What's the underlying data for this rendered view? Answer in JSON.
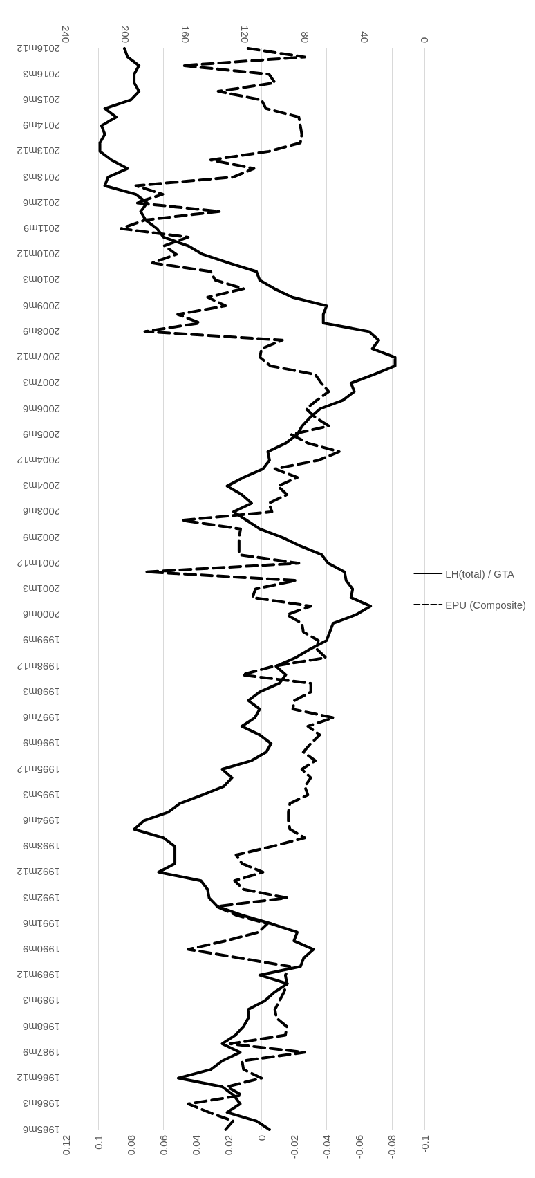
{
  "chart_data": {
    "type": "line",
    "orientation": "horizontal",
    "marker": "none",
    "grid": "x",
    "legend": "right",
    "categories": [
      "2016m12",
      null,
      null,
      "2016m3",
      null,
      null,
      "2015m6",
      null,
      null,
      "2014m9",
      null,
      null,
      "2013m12",
      null,
      null,
      "2013m3",
      null,
      null,
      "2012m6",
      null,
      null,
      "2011m9",
      null,
      null,
      "2010m12",
      null,
      null,
      "2010m3",
      null,
      null,
      "2009m6",
      null,
      null,
      "2008m9",
      null,
      null,
      "2007m12",
      null,
      null,
      "2007m3",
      null,
      null,
      "2006m6",
      null,
      null,
      "2005m9",
      null,
      null,
      "2004m12",
      null,
      null,
      "2004m3",
      null,
      null,
      "2003m6",
      null,
      null,
      "2002m9",
      null,
      null,
      "2001m12",
      null,
      null,
      "2001m3",
      null,
      null,
      "2000m6",
      null,
      null,
      "1999m9",
      null,
      null,
      "1998m12",
      null,
      null,
      "1998m3",
      null,
      null,
      "1997m6",
      null,
      null,
      "1996m9",
      null,
      null,
      "1995m12",
      null,
      null,
      "1995m3",
      null,
      null,
      "1994m6",
      null,
      null,
      "1993m9",
      null,
      null,
      "1992m12",
      null,
      null,
      "1992m3",
      null,
      null,
      "1991m6",
      null,
      null,
      "1990m9",
      null,
      null,
      "1989m12",
      null,
      null,
      "1989m3",
      null,
      null,
      "1988m6",
      null,
      null,
      "1987m9",
      null,
      null,
      "1986m12",
      null,
      null,
      "1986m3",
      null,
      null,
      "1985m6"
    ],
    "xlim": [
      0.12,
      -0.1
    ],
    "xticks": [
      0.12,
      0.1,
      0.08,
      0.06,
      0.04,
      0.02,
      0,
      -0.02,
      -0.04,
      -0.06,
      -0.08,
      -0.1
    ],
    "x2lim": [
      240,
      0
    ],
    "x2ticks": [
      240,
      200,
      160,
      120,
      80,
      40,
      0
    ],
    "series": [
      {
        "name": "LH(total) / GTA",
        "color": "#000000",
        "line_style": "solid",
        "values": [
          0.084,
          0.082,
          0.075,
          0.078,
          0.078,
          0.075,
          0.08,
          0.096,
          0.089,
          0.098,
          0.096,
          0.099,
          0.099,
          0.092,
          0.082,
          0.094,
          0.096,
          0.077,
          0.07,
          0.074,
          0.071,
          0.064,
          0.06,
          0.045,
          0.036,
          0.02,
          0.003,
          0.001,
          -0.008,
          -0.019,
          -0.04,
          -0.038,
          -0.038,
          -0.066,
          -0.072,
          -0.068,
          -0.082,
          -0.082,
          -0.069,
          -0.055,
          -0.057,
          -0.05,
          -0.036,
          -0.03,
          -0.025,
          -0.022,
          -0.015,
          -0.004,
          -0.005,
          -0.001,
          0.011,
          0.021,
          0.012,
          0.006,
          0.017,
          0.009,
          0.001,
          -0.013,
          -0.024,
          -0.037,
          -0.041,
          -0.051,
          -0.052,
          -0.056,
          -0.055,
          -0.067,
          -0.058,
          -0.044,
          -0.042,
          -0.04,
          -0.03,
          -0.021,
          -0.009,
          -0.015,
          -0.011,
          0.001,
          0.008,
          0.001,
          0.004,
          0.012,
          0.001,
          -0.006,
          -0.003,
          0.006,
          0.024,
          0.018,
          0.023,
          0.036,
          0.05,
          0.057,
          0.072,
          0.078,
          0.06,
          0.053,
          0.053,
          0.053,
          0.063,
          0.037,
          0.033,
          0.032,
          0.027,
          0.012,
          -0.006,
          -0.022,
          -0.02,
          -0.032,
          -0.026,
          -0.024,
          0.001,
          -0.016,
          -0.008,
          -0.002,
          0.008,
          0.008,
          0.011,
          0.016,
          0.024,
          0.013,
          0.024,
          0.031,
          0.051,
          0.024,
          0.017,
          0.013,
          0.021,
          0.003,
          -0.005
        ]
      },
      {
        "name": "EPU (Composite)",
        "color": "#000000",
        "line_style": "dashed",
        "axis": "x2",
        "values": [
          118,
          80,
          162,
          104,
          100,
          138,
          109,
          106,
          84,
          83,
          82,
          83,
          104,
          143,
          114,
          128,
          193,
          175,
          193,
          137,
          187,
          203,
          158,
          174,
          166,
          182,
          143,
          140,
          121,
          145,
          133,
          165,
          150,
          187,
          95,
          109,
          110,
          103,
          73,
          69,
          64,
          72,
          79,
          73,
          64,
          89,
          78,
          57,
          71,
          100,
          85,
          98,
          92,
          104,
          102,
          162,
          123,
          124,
          124,
          124,
          84,
          186,
          86,
          113,
          115,
          76,
          92,
          82,
          81,
          71,
          72,
          66,
          101,
          122,
          76,
          76,
          87,
          88,
          61,
          78,
          70,
          76,
          81,
          73,
          82,
          76,
          80,
          78,
          90,
          91,
          91,
          90,
          80,
          102,
          126,
          122,
          108,
          127,
          121,
          92,
          139,
          126,
          105,
          111,
          133,
          158,
          124,
          90,
          93,
          92,
          94,
          97,
          100,
          99,
          92,
          93,
          130,
          80,
          122,
          121,
          109,
          132,
          122,
          158,
          144,
          128,
          133
        ]
      }
    ]
  }
}
